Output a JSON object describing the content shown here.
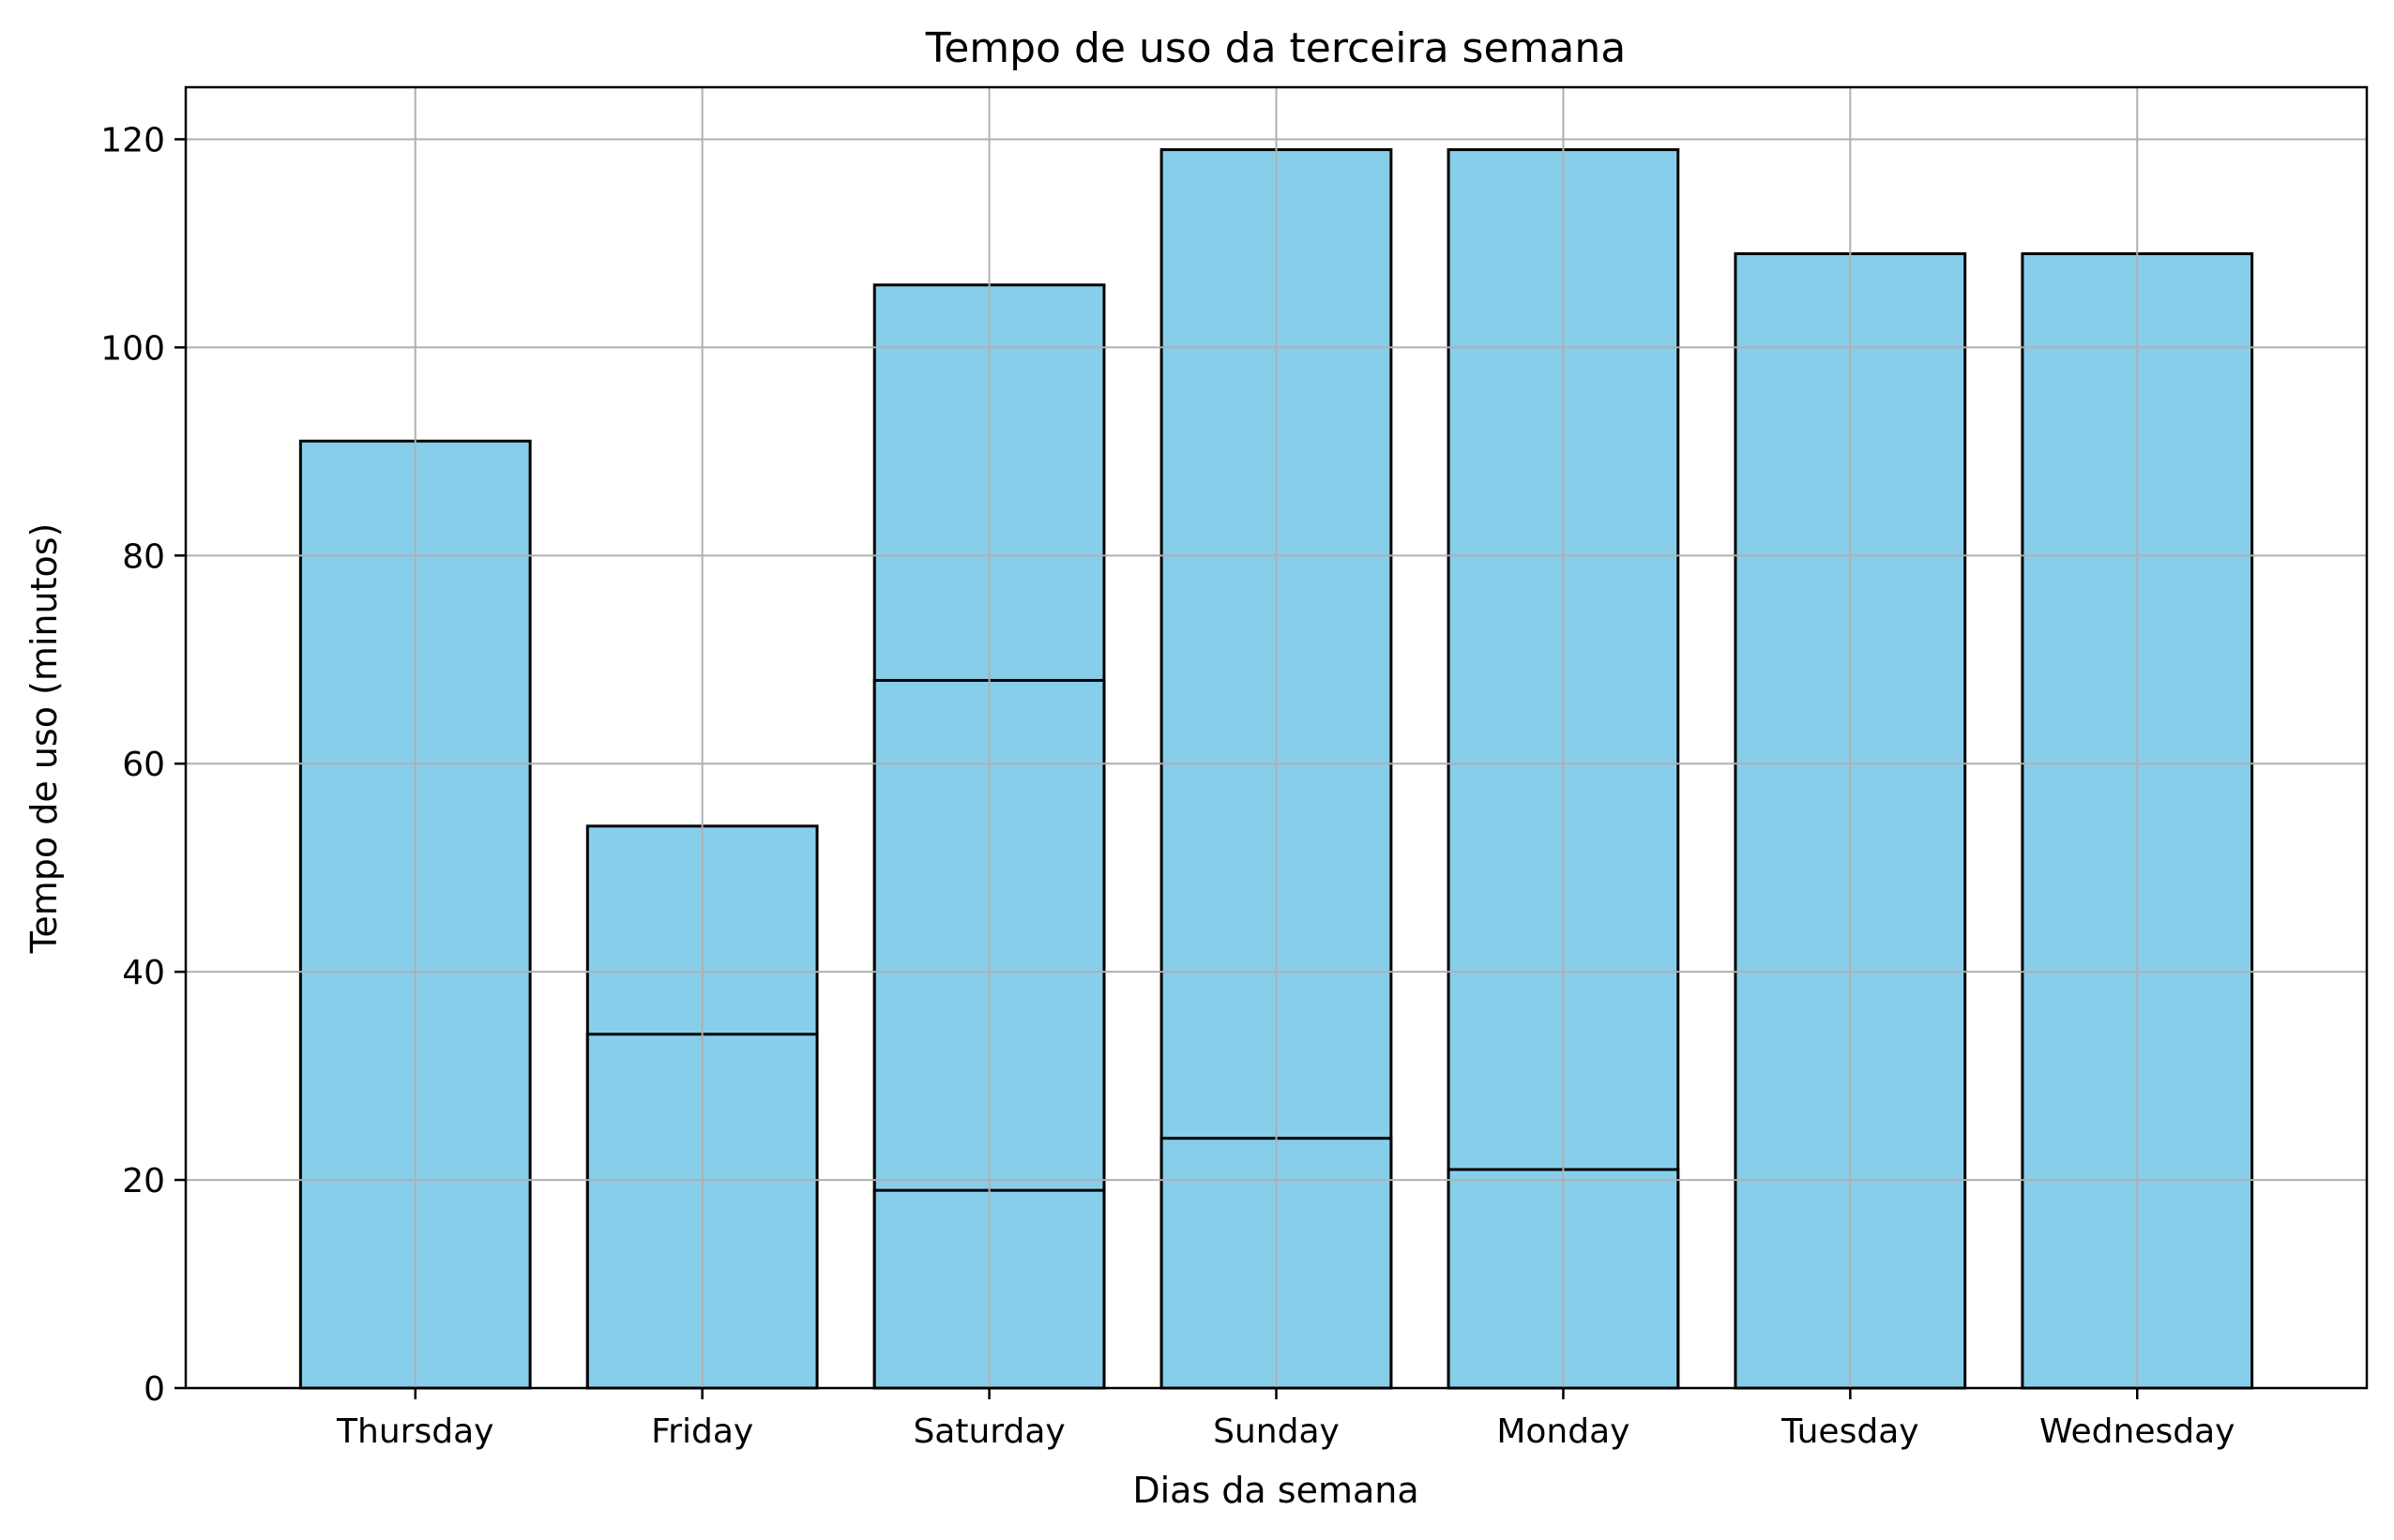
{
  "chart_data": {
    "type": "bar",
    "title": "Tempo de uso da terceira semana",
    "xlabel": "Dias da semana",
    "ylabel": "Tempo de uso (minutos)",
    "categories": [
      "Thursday",
      "Friday",
      "Saturday",
      "Sunday",
      "Monday",
      "Tuesday",
      "Wednesday"
    ],
    "segments": [
      [
        91
      ],
      [
        34,
        54
      ],
      [
        19,
        68,
        106
      ],
      [
        24,
        119
      ],
      [
        21,
        119
      ],
      [
        109
      ],
      [
        109
      ]
    ],
    "ylim": [
      0,
      125
    ],
    "yticks": [
      0,
      20,
      40,
      60,
      80,
      100,
      120
    ],
    "grid": true,
    "bar_color": "#87CEEB",
    "edge_color": "#000000",
    "grid_color": "#b0b0b0"
  }
}
